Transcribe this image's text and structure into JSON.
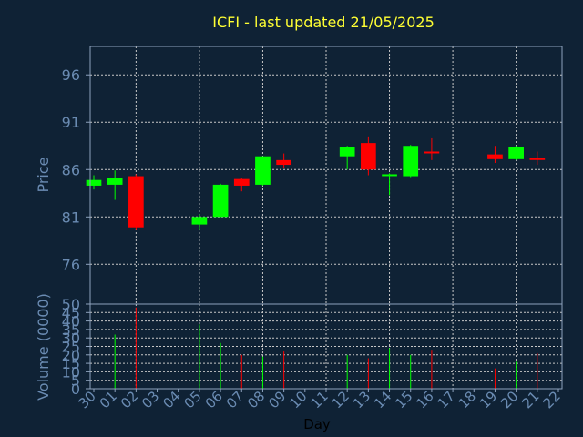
{
  "chart_data": {
    "type": "candlestick",
    "title": "ICFI - last updated 21/05/2025",
    "xlabel": "Day",
    "colors": {
      "background": "#0f2235",
      "axis": "#8da2bd",
      "tick_text": "#6a8bb2",
      "title": "#ffff33",
      "grid": "#c8c8c8",
      "up": "#00ff00",
      "down": "#ff0000"
    },
    "categories": [
      "30",
      "01",
      "02",
      "03",
      "04",
      "05",
      "06",
      "07",
      "08",
      "09",
      "10",
      "11",
      "12",
      "13",
      "14",
      "15",
      "16",
      "17",
      "18",
      "19",
      "20",
      "21",
      "22"
    ],
    "price": {
      "ylabel": "Price",
      "ylim": [
        71.8,
        99
      ],
      "yticks": [
        76,
        81,
        86,
        91,
        96
      ],
      "grid": true
    },
    "volume": {
      "ylabel": "Volume (0000)",
      "ylim": [
        0,
        50
      ],
      "yticks": [
        0,
        5,
        10,
        15,
        20,
        25,
        30,
        35,
        40,
        45,
        50
      ],
      "grid": true
    },
    "candles": [
      {
        "day": "30",
        "open": 84.3,
        "high": 85.4,
        "low": 83.9,
        "close": 84.9,
        "volume": 0
      },
      {
        "day": "01",
        "open": 84.4,
        "high": 85.9,
        "low": 82.8,
        "close": 85.1,
        "volume": 32
      },
      {
        "day": "02",
        "open": 85.3,
        "high": 85.5,
        "low": 79.6,
        "close": 79.9,
        "volume": 48
      },
      {
        "day": "05",
        "open": 80.2,
        "high": 81.3,
        "low": 79.6,
        "close": 81.0,
        "volume": 38
      },
      {
        "day": "06",
        "open": 81.0,
        "high": 84.5,
        "low": 81.0,
        "close": 84.4,
        "volume": 27
      },
      {
        "day": "07",
        "open": 85.0,
        "high": 85.1,
        "low": 83.7,
        "close": 84.3,
        "volume": 20
      },
      {
        "day": "08",
        "open": 84.4,
        "high": 87.4,
        "low": 84.3,
        "close": 87.4,
        "volume": 19
      },
      {
        "day": "09",
        "open": 87.0,
        "high": 87.7,
        "low": 86.2,
        "close": 86.5,
        "volume": 22
      },
      {
        "day": "12",
        "open": 87.4,
        "high": 88.5,
        "low": 86.0,
        "close": 88.4,
        "volume": 20
      },
      {
        "day": "13",
        "open": 88.8,
        "high": 89.5,
        "low": 85.4,
        "close": 86.0,
        "volume": 18
      },
      {
        "day": "14",
        "open": 85.4,
        "high": 85.6,
        "low": 83.3,
        "close": 85.5,
        "volume": 24
      },
      {
        "day": "15",
        "open": 85.3,
        "high": 88.6,
        "low": 85.2,
        "close": 88.5,
        "volume": 20
      },
      {
        "day": "16",
        "open": 87.9,
        "high": 89.3,
        "low": 87.0,
        "close": 87.8,
        "volume": 23
      },
      {
        "day": "19",
        "open": 87.6,
        "high": 88.5,
        "low": 86.7,
        "close": 87.1,
        "volume": 12
      },
      {
        "day": "20",
        "open": 87.1,
        "high": 88.5,
        "low": 87.0,
        "close": 88.4,
        "volume": 16
      },
      {
        "day": "21",
        "open": 87.2,
        "high": 87.9,
        "low": 86.5,
        "close": 87.1,
        "volume": 21
      }
    ]
  }
}
